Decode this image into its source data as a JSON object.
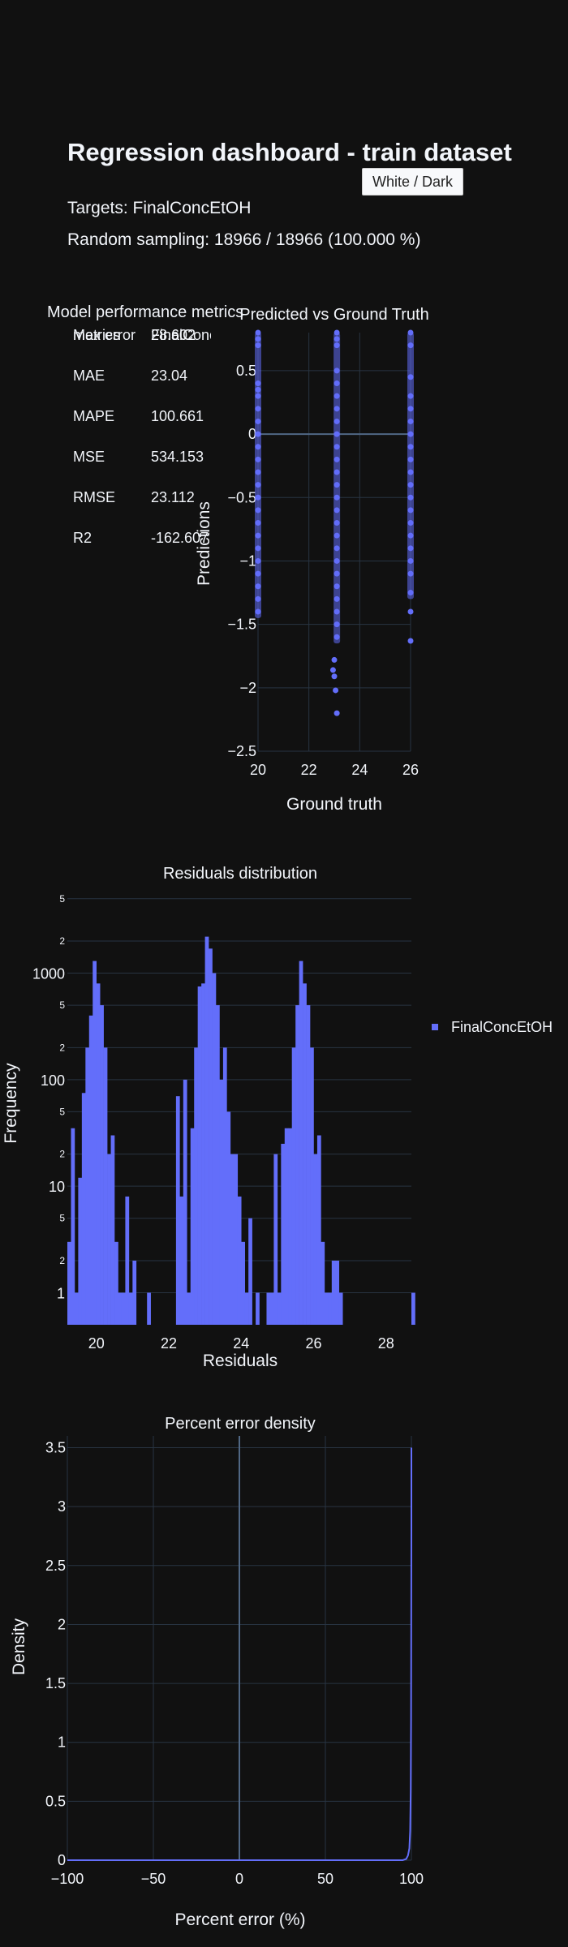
{
  "header": {
    "title": "Regression dashboard - train dataset",
    "theme_button": "White / Dark",
    "targets": "Targets: FinalConcEtOH",
    "sampling": "Random sampling: 18966 / 18966 (100.000 %)"
  },
  "colors": {
    "background": "#111111",
    "accent": "#636efa",
    "grid": "#283442",
    "text": "#f2f5fa"
  },
  "metrics_table": {
    "title": "Model performance metrics",
    "headers": [
      "metrics",
      "FinalConcEtOH"
    ],
    "rows": [
      [
        "MAE",
        "23.04"
      ],
      [
        "MAPE",
        "100.661"
      ],
      [
        "MSE",
        "534.153"
      ],
      [
        "RMSE",
        "23.112"
      ],
      [
        "R2",
        "-162.607"
      ],
      [
        "Max error",
        "28.602"
      ]
    ]
  },
  "chart_data": [
    {
      "type": "scatter",
      "title": "Predicted vs Ground Truth",
      "xlabel": "Ground truth",
      "ylabel": "Predictions",
      "xlim": [
        20,
        26
      ],
      "ylim": [
        -2.5,
        0.8
      ],
      "xticks": [
        20,
        22,
        24,
        26
      ],
      "yticks": [
        0.5,
        0,
        -0.5,
        -1,
        -1.5,
        -2,
        -2.5
      ],
      "grid": true,
      "series": [
        {
          "values_note": "three vertical clusters",
          "points": [
            [
              20,
              0.8
            ],
            [
              20,
              0.75
            ],
            [
              20,
              0.7
            ],
            [
              20,
              0.4
            ],
            [
              20,
              0.35
            ],
            [
              20,
              0.3
            ],
            [
              20,
              0.2
            ],
            [
              20,
              0.1
            ],
            [
              20,
              0.0
            ],
            [
              20,
              -0.1
            ],
            [
              20,
              -0.2
            ],
            [
              20,
              -0.3
            ],
            [
              20,
              -0.4
            ],
            [
              20,
              -0.5
            ],
            [
              20,
              -0.6
            ],
            [
              20,
              -0.7
            ],
            [
              20,
              -0.8
            ],
            [
              20,
              -0.9
            ],
            [
              20,
              -1.0
            ],
            [
              20,
              -1.1
            ],
            [
              20,
              -1.2
            ],
            [
              20,
              -1.3
            ],
            [
              20,
              -1.4
            ],
            [
              23.1,
              0.8
            ],
            [
              23.1,
              0.75
            ],
            [
              23.1,
              0.7
            ],
            [
              23.1,
              0.5
            ],
            [
              23.1,
              0.4
            ],
            [
              23.1,
              0.3
            ],
            [
              23.1,
              0.2
            ],
            [
              23.1,
              0.1
            ],
            [
              23.1,
              0.0
            ],
            [
              23.1,
              -0.1
            ],
            [
              23.1,
              -0.2
            ],
            [
              23.1,
              -0.3
            ],
            [
              23.1,
              -0.4
            ],
            [
              23.1,
              -0.5
            ],
            [
              23.1,
              -0.6
            ],
            [
              23.1,
              -0.7
            ],
            [
              23.1,
              -0.8
            ],
            [
              23.1,
              -0.9
            ],
            [
              23.1,
              -1.0
            ],
            [
              23.1,
              -1.1
            ],
            [
              23.1,
              -1.2
            ],
            [
              23.1,
              -1.3
            ],
            [
              23.1,
              -1.4
            ],
            [
              23.1,
              -1.5
            ],
            [
              23.1,
              -1.6
            ],
            [
              23.0,
              -1.78
            ],
            [
              22.95,
              -1.86
            ],
            [
              23.0,
              -1.91
            ],
            [
              23.05,
              -2.02
            ],
            [
              23.1,
              -2.2
            ],
            [
              26,
              0.8
            ],
            [
              26,
              0.7
            ],
            [
              26,
              0.45
            ],
            [
              26,
              0.3
            ],
            [
              26,
              0.2
            ],
            [
              26,
              0.1
            ],
            [
              26,
              0.0
            ],
            [
              26,
              -0.1
            ],
            [
              26,
              -0.2
            ],
            [
              26,
              -0.3
            ],
            [
              26,
              -0.4
            ],
            [
              26,
              -0.5
            ],
            [
              26,
              -0.6
            ],
            [
              26,
              -0.7
            ],
            [
              26,
              -0.8
            ],
            [
              26,
              -0.9
            ],
            [
              26,
              -1.0
            ],
            [
              26,
              -1.1
            ],
            [
              26,
              -1.25
            ],
            [
              26,
              -1.4
            ],
            [
              26,
              -1.63
            ]
          ]
        }
      ]
    },
    {
      "type": "bar",
      "title": "Residuals distribution",
      "xlabel": "Residuals",
      "ylabel": "Frequency",
      "log_y": true,
      "xlim": [
        19.2,
        28.7
      ],
      "xticks": [
        20,
        22,
        24,
        26,
        28
      ],
      "ytick_labels": [
        [
          1,
          "1"
        ],
        [
          2,
          "2"
        ],
        [
          5,
          "5"
        ],
        [
          10,
          "10"
        ],
        [
          20,
          "2"
        ],
        [
          50,
          "5"
        ],
        [
          100,
          "100"
        ],
        [
          200,
          "2"
        ],
        [
          500,
          "5"
        ],
        [
          1000,
          "1000"
        ],
        [
          2000,
          "2"
        ],
        [
          5000,
          "5"
        ]
      ],
      "ylim_log": [
        1,
        5000
      ],
      "bin_start": 19.2,
      "bin_width": 0.1,
      "legend": {
        "name": "FinalConcEtOH",
        "placement": "right"
      },
      "values": [
        3,
        35,
        1,
        12,
        75,
        200,
        400,
        1300,
        800,
        500,
        200,
        20,
        30,
        3,
        1,
        1,
        8,
        1,
        2,
        0,
        0,
        0,
        1,
        0,
        0,
        0,
        0,
        0,
        0,
        0,
        70,
        8,
        100,
        1,
        35,
        200,
        750,
        800,
        2200,
        1700,
        1000,
        500,
        100,
        200,
        50,
        20,
        20,
        8,
        3,
        1,
        5,
        0,
        1,
        0,
        0,
        1,
        1,
        20,
        1,
        25,
        35,
        35,
        200,
        500,
        1300,
        800,
        500,
        200,
        20,
        30,
        3,
        1,
        1,
        2,
        2,
        1,
        0,
        0,
        0,
        0,
        0,
        0,
        0,
        0,
        0,
        0,
        0,
        0,
        0,
        0,
        0,
        0,
        0,
        0,
        0,
        1
      ]
    },
    {
      "type": "line",
      "title": "Percent error density",
      "xlabel": "Percent error (%)",
      "ylabel": "Density",
      "xlim": [
        -100,
        100
      ],
      "ylim": [
        0,
        3.6
      ],
      "xticks": [
        -100,
        -50,
        0,
        50,
        100
      ],
      "yticks": [
        0,
        0.5,
        1,
        1.5,
        2,
        2.5,
        3,
        3.5
      ],
      "grid": true,
      "x": [
        -100,
        95,
        97,
        98,
        98.8,
        99.3,
        99.6,
        99.8,
        99.9,
        100,
        100
      ],
      "y": [
        0,
        0,
        0.01,
        0.04,
        0.1,
        0.25,
        0.6,
        1.2,
        2.0,
        2.8,
        3.5
      ]
    }
  ]
}
